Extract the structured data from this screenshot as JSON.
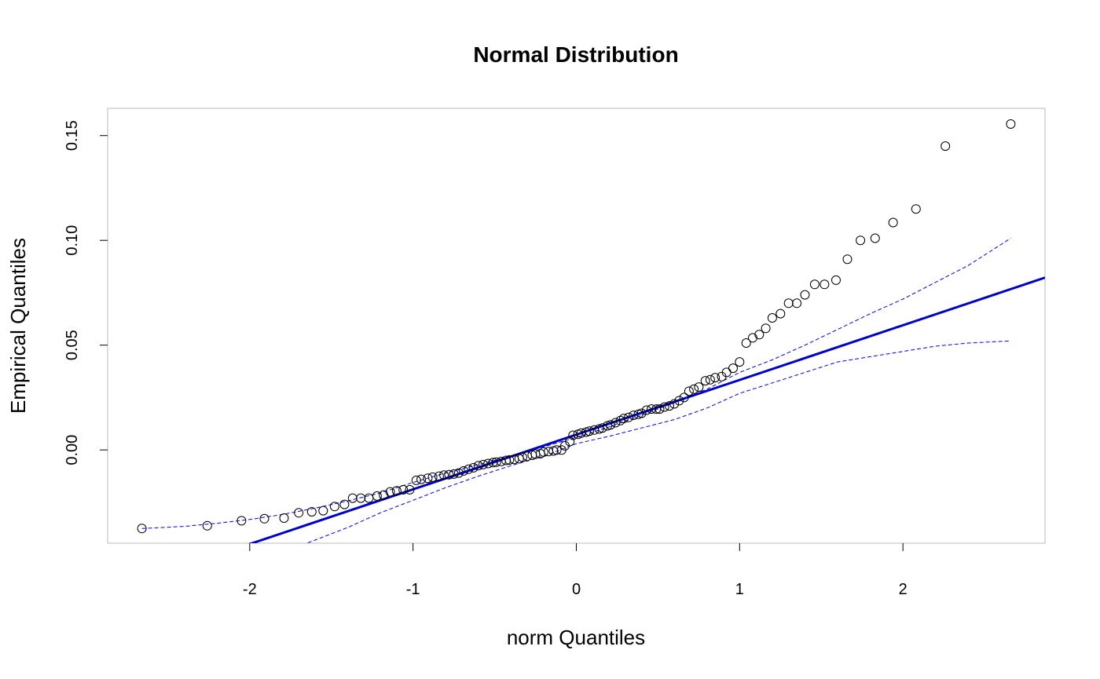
{
  "chart_data": {
    "type": "scatter",
    "title": "Normal Distribution",
    "xlabel": "norm Quantiles",
    "ylabel": "Empirical Quantiles",
    "xlim": [
      -2.87,
      2.87
    ],
    "ylim": [
      -0.0445,
      0.163
    ],
    "x_ticks": [
      -2,
      -1,
      0,
      1,
      2
    ],
    "x_tick_labels": [
      "-2",
      "-1",
      "0",
      "1",
      "2"
    ],
    "y_ticks": [
      0.0,
      0.05,
      0.1,
      0.15
    ],
    "y_tick_labels": [
      "0.00",
      "0.05",
      "0.10",
      "0.15"
    ],
    "grid": false,
    "point_style": "open-circle",
    "colors": {
      "points": "#000000",
      "reference_line": "#0000cc",
      "envelope": "#0000ff",
      "frame": "#bbbbbb"
    },
    "points": [
      [
        -2.66,
        -0.0375
      ],
      [
        -2.26,
        -0.0362
      ],
      [
        -2.05,
        -0.0338
      ],
      [
        -1.91,
        -0.0328
      ],
      [
        -1.79,
        -0.0325
      ],
      [
        -1.7,
        -0.03
      ],
      [
        -1.62,
        -0.0295
      ],
      [
        -1.55,
        -0.029
      ],
      [
        -1.48,
        -0.027
      ],
      [
        -1.42,
        -0.026
      ],
      [
        -1.37,
        -0.023
      ],
      [
        -1.32,
        -0.023
      ],
      [
        -1.27,
        -0.023
      ],
      [
        -1.22,
        -0.022
      ],
      [
        -1.18,
        -0.0215
      ],
      [
        -1.14,
        -0.02
      ],
      [
        -1.1,
        -0.0195
      ],
      [
        -1.06,
        -0.019
      ],
      [
        -1.02,
        -0.019
      ],
      [
        -0.98,
        -0.0145
      ],
      [
        -0.95,
        -0.014
      ],
      [
        -0.91,
        -0.0135
      ],
      [
        -0.88,
        -0.013
      ],
      [
        -0.84,
        -0.0125
      ],
      [
        -0.81,
        -0.012
      ],
      [
        -0.78,
        -0.0118
      ],
      [
        -0.75,
        -0.0115
      ],
      [
        -0.72,
        -0.011
      ],
      [
        -0.69,
        -0.01
      ],
      [
        -0.66,
        -0.0092
      ],
      [
        -0.63,
        -0.0085
      ],
      [
        -0.6,
        -0.0075
      ],
      [
        -0.57,
        -0.007
      ],
      [
        -0.54,
        -0.0065
      ],
      [
        -0.51,
        -0.006
      ],
      [
        -0.49,
        -0.0058
      ],
      [
        -0.46,
        -0.0055
      ],
      [
        -0.43,
        -0.005
      ],
      [
        -0.41,
        -0.0048
      ],
      [
        -0.38,
        -0.0045
      ],
      [
        -0.35,
        -0.0042
      ],
      [
        -0.33,
        -0.0035
      ],
      [
        -0.3,
        -0.003
      ],
      [
        -0.27,
        -0.0025
      ],
      [
        -0.25,
        -0.002
      ],
      [
        -0.22,
        -0.0018
      ],
      [
        -0.2,
        -0.001
      ],
      [
        -0.17,
        -0.0008
      ],
      [
        -0.14,
        -0.0005
      ],
      [
        -0.12,
        0.0
      ],
      [
        -0.09,
        0.0
      ],
      [
        -0.07,
        0.002
      ],
      [
        -0.04,
        0.004
      ],
      [
        -0.02,
        0.007
      ],
      [
        0.01,
        0.0075
      ],
      [
        0.03,
        0.008
      ],
      [
        0.06,
        0.0085
      ],
      [
        0.08,
        0.009
      ],
      [
        0.11,
        0.0095
      ],
      [
        0.14,
        0.01
      ],
      [
        0.16,
        0.0105
      ],
      [
        0.19,
        0.0115
      ],
      [
        0.21,
        0.012
      ],
      [
        0.24,
        0.013
      ],
      [
        0.27,
        0.014
      ],
      [
        0.29,
        0.015
      ],
      [
        0.32,
        0.0155
      ],
      [
        0.35,
        0.0165
      ],
      [
        0.38,
        0.017
      ],
      [
        0.4,
        0.0175
      ],
      [
        0.43,
        0.019
      ],
      [
        0.46,
        0.0195
      ],
      [
        0.49,
        0.0195
      ],
      [
        0.51,
        0.0195
      ],
      [
        0.54,
        0.0205
      ],
      [
        0.57,
        0.021
      ],
      [
        0.6,
        0.022
      ],
      [
        0.63,
        0.0235
      ],
      [
        0.66,
        0.025
      ],
      [
        0.69,
        0.028
      ],
      [
        0.72,
        0.029
      ],
      [
        0.75,
        0.03
      ],
      [
        0.79,
        0.033
      ],
      [
        0.82,
        0.0335
      ],
      [
        0.85,
        0.0345
      ],
      [
        0.89,
        0.035
      ],
      [
        0.92,
        0.037
      ],
      [
        0.96,
        0.039
      ],
      [
        1.0,
        0.042
      ],
      [
        1.04,
        0.051
      ],
      [
        1.08,
        0.0535
      ],
      [
        1.12,
        0.055
      ],
      [
        1.16,
        0.058
      ],
      [
        1.2,
        0.063
      ],
      [
        1.25,
        0.065
      ],
      [
        1.3,
        0.07
      ],
      [
        1.35,
        0.07
      ],
      [
        1.4,
        0.074
      ],
      [
        1.46,
        0.079
      ],
      [
        1.52,
        0.079
      ],
      [
        1.59,
        0.081
      ],
      [
        1.66,
        0.091
      ],
      [
        1.74,
        0.1
      ],
      [
        1.83,
        0.101
      ],
      [
        1.94,
        0.1085
      ],
      [
        2.08,
        0.115
      ],
      [
        2.26,
        0.145
      ],
      [
        2.66,
        0.1555
      ]
    ],
    "reference_line": {
      "intercept": 0.0073,
      "slope": 0.0261
    },
    "envelope_x": [
      -2.66,
      -2.4,
      -2.2,
      -2.0,
      -1.8,
      -1.6,
      -1.4,
      -1.2,
      -1.0,
      -0.8,
      -0.6,
      -0.4,
      -0.2,
      0.0,
      0.2,
      0.4,
      0.6,
      0.8,
      1.0,
      1.2,
      1.4,
      1.6,
      1.8,
      2.0,
      2.2,
      2.4,
      2.66
    ],
    "envelope_upper": [
      -0.0375,
      -0.0365,
      -0.035,
      -0.0332,
      -0.0308,
      -0.0278,
      -0.0243,
      -0.0205,
      -0.0155,
      -0.011,
      -0.007,
      -0.003,
      0.0015,
      0.006,
      0.011,
      0.0165,
      0.0225,
      0.029,
      0.037,
      0.043,
      0.05,
      0.0575,
      0.065,
      0.072,
      0.08,
      0.088,
      0.101
    ],
    "envelope_lower": [
      -0.08,
      -0.07,
      -0.062,
      -0.055,
      -0.049,
      -0.043,
      -0.037,
      -0.03,
      -0.024,
      -0.018,
      -0.0125,
      -0.0075,
      -0.003,
      0.003,
      0.0065,
      0.0105,
      0.0145,
      0.02,
      0.027,
      0.032,
      0.037,
      0.042,
      0.0445,
      0.047,
      0.0495,
      0.051,
      0.052
    ]
  }
}
